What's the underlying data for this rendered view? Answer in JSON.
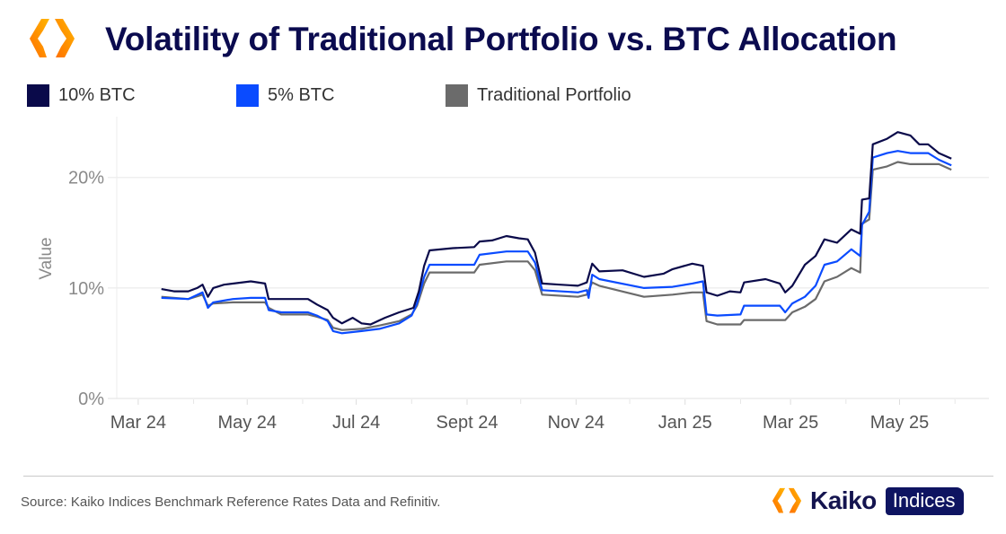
{
  "header": {
    "title": "Volatility of Traditional Portfolio vs. BTC Allocation",
    "logo_icon": "kaiko-hexagon-logo-icon"
  },
  "colors": {
    "title": "#0b0b4f",
    "logo_orange_dark": "#ff7a00",
    "logo_orange_light": "#ffb400",
    "badge_bg": "#0e1461"
  },
  "footer": {
    "source": "Source: Kaiko Indices Benchmark Reference Rates Data and Refinitiv.",
    "brand_name": "Kaiko",
    "brand_badge": "Indices"
  },
  "chart_data": {
    "type": "line",
    "title": "Volatility of Traditional Portfolio vs. BTC Allocation",
    "xlabel": "",
    "ylabel": "Value",
    "ylim": [
      0,
      25.5
    ],
    "xlim": [
      "2024-02-18",
      "2025-06-20"
    ],
    "grid": true,
    "legend_position": "top-left",
    "y_ticks": [
      {
        "value": 0,
        "label": "0%"
      },
      {
        "value": 10,
        "label": "10%"
      },
      {
        "value": 20,
        "label": "20%"
      }
    ],
    "x_ticks": [
      {
        "date": "2024-03-01",
        "label": "Mar 24"
      },
      {
        "date": "2024-05-01",
        "label": "May 24"
      },
      {
        "date": "2024-07-01",
        "label": "Jul 24"
      },
      {
        "date": "2024-09-01",
        "label": "Sept 24"
      },
      {
        "date": "2024-11-01",
        "label": "Nov 24"
      },
      {
        "date": "2025-01-01",
        "label": "Jan 25"
      },
      {
        "date": "2025-03-01",
        "label": "Mar 25"
      },
      {
        "date": "2025-05-01",
        "label": "May 25"
      }
    ],
    "x_minor_ticks": [
      "2024-02-01",
      "2024-04-01",
      "2024-06-01",
      "2024-08-01",
      "2024-10-01",
      "2024-12-01",
      "2025-02-01",
      "2025-04-01",
      "2025-06-01"
    ],
    "series": [
      {
        "name": "10% BTC",
        "color": "#0a0a4a",
        "points": [
          [
            "2024-03-14",
            9.9
          ],
          [
            "2024-03-21",
            9.7
          ],
          [
            "2024-03-29",
            9.7
          ],
          [
            "2024-04-03",
            10.0
          ],
          [
            "2024-04-06",
            10.3
          ],
          [
            "2024-04-09",
            9.2
          ],
          [
            "2024-04-12",
            10.0
          ],
          [
            "2024-04-18",
            10.3
          ],
          [
            "2024-05-03",
            10.6
          ],
          [
            "2024-05-11",
            10.4
          ],
          [
            "2024-05-13",
            9.0
          ],
          [
            "2024-05-20",
            9.0
          ],
          [
            "2024-06-04",
            9.0
          ],
          [
            "2024-06-09",
            8.5
          ],
          [
            "2024-06-15",
            8.0
          ],
          [
            "2024-06-18",
            7.3
          ],
          [
            "2024-06-23",
            6.8
          ],
          [
            "2024-06-29",
            7.3
          ],
          [
            "2024-07-04",
            6.8
          ],
          [
            "2024-07-09",
            6.7
          ],
          [
            "2024-07-17",
            7.3
          ],
          [
            "2024-07-25",
            7.8
          ],
          [
            "2024-08-02",
            8.2
          ],
          [
            "2024-08-05",
            9.7
          ],
          [
            "2024-08-08",
            12.0
          ],
          [
            "2024-08-11",
            13.4
          ],
          [
            "2024-08-24",
            13.6
          ],
          [
            "2024-09-05",
            13.7
          ],
          [
            "2024-09-08",
            14.2
          ],
          [
            "2024-09-15",
            14.3
          ],
          [
            "2024-09-23",
            14.7
          ],
          [
            "2024-09-30",
            14.5
          ],
          [
            "2024-10-05",
            14.4
          ],
          [
            "2024-10-09",
            13.2
          ],
          [
            "2024-10-13",
            10.4
          ],
          [
            "2024-10-23",
            10.3
          ],
          [
            "2024-11-02",
            10.2
          ],
          [
            "2024-11-07",
            10.5
          ],
          [
            "2024-11-10",
            12.2
          ],
          [
            "2024-11-14",
            11.5
          ],
          [
            "2024-11-27",
            11.6
          ],
          [
            "2024-12-09",
            11.0
          ],
          [
            "2024-12-20",
            11.3
          ],
          [
            "2024-12-25",
            11.7
          ],
          [
            "2025-01-05",
            12.2
          ],
          [
            "2025-01-11",
            12.0
          ],
          [
            "2025-01-13",
            9.6
          ],
          [
            "2025-01-19",
            9.3
          ],
          [
            "2025-01-26",
            9.7
          ],
          [
            "2025-02-01",
            9.6
          ],
          [
            "2025-02-03",
            10.5
          ],
          [
            "2025-02-15",
            10.8
          ],
          [
            "2025-02-23",
            10.4
          ],
          [
            "2025-02-26",
            9.6
          ],
          [
            "2025-03-02",
            10.2
          ],
          [
            "2025-03-09",
            12.1
          ],
          [
            "2025-03-15",
            12.9
          ],
          [
            "2025-03-20",
            14.4
          ],
          [
            "2025-03-27",
            14.1
          ],
          [
            "2025-04-04",
            15.3
          ],
          [
            "2025-04-09",
            14.9
          ],
          [
            "2025-04-10",
            18.0
          ],
          [
            "2025-04-14",
            18.1
          ],
          [
            "2025-04-16",
            23.0
          ],
          [
            "2025-04-24",
            23.5
          ],
          [
            "2025-04-30",
            24.1
          ],
          [
            "2025-05-07",
            23.8
          ],
          [
            "2025-05-12",
            23.0
          ],
          [
            "2025-05-17",
            23.0
          ],
          [
            "2025-05-23",
            22.2
          ],
          [
            "2025-05-30",
            21.7
          ]
        ]
      },
      {
        "name": "5% BTC",
        "color": "#0a4bff",
        "points": [
          [
            "2024-03-14",
            9.1
          ],
          [
            "2024-03-29",
            9.0
          ],
          [
            "2024-04-06",
            9.6
          ],
          [
            "2024-04-09",
            8.2
          ],
          [
            "2024-04-12",
            8.7
          ],
          [
            "2024-04-23",
            9.0
          ],
          [
            "2024-05-03",
            9.1
          ],
          [
            "2024-05-11",
            9.1
          ],
          [
            "2024-05-13",
            8.0
          ],
          [
            "2024-05-20",
            7.8
          ],
          [
            "2024-06-04",
            7.8
          ],
          [
            "2024-06-09",
            7.5
          ],
          [
            "2024-06-15",
            7.0
          ],
          [
            "2024-06-18",
            6.1
          ],
          [
            "2024-06-23",
            5.9
          ],
          [
            "2024-07-04",
            6.1
          ],
          [
            "2024-07-14",
            6.3
          ],
          [
            "2024-07-25",
            6.8
          ],
          [
            "2024-08-01",
            7.5
          ],
          [
            "2024-08-04",
            8.6
          ],
          [
            "2024-08-08",
            11.0
          ],
          [
            "2024-08-11",
            12.1
          ],
          [
            "2024-09-05",
            12.1
          ],
          [
            "2024-09-08",
            13.0
          ],
          [
            "2024-09-23",
            13.3
          ],
          [
            "2024-10-05",
            13.3
          ],
          [
            "2024-10-09",
            12.3
          ],
          [
            "2024-10-13",
            9.8
          ],
          [
            "2024-11-02",
            9.6
          ],
          [
            "2024-11-07",
            9.8
          ],
          [
            "2024-11-08",
            9.1
          ],
          [
            "2024-11-10",
            11.2
          ],
          [
            "2024-11-14",
            10.8
          ],
          [
            "2024-12-09",
            10.0
          ],
          [
            "2024-12-25",
            10.1
          ],
          [
            "2025-01-05",
            10.4
          ],
          [
            "2025-01-11",
            10.6
          ],
          [
            "2025-01-13",
            7.6
          ],
          [
            "2025-01-19",
            7.5
          ],
          [
            "2025-02-01",
            7.6
          ],
          [
            "2025-02-03",
            8.4
          ],
          [
            "2025-02-23",
            8.4
          ],
          [
            "2025-02-26",
            7.8
          ],
          [
            "2025-03-02",
            8.6
          ],
          [
            "2025-03-09",
            9.2
          ],
          [
            "2025-03-15",
            10.2
          ],
          [
            "2025-03-20",
            12.1
          ],
          [
            "2025-03-27",
            12.4
          ],
          [
            "2025-04-04",
            13.5
          ],
          [
            "2025-04-09",
            12.9
          ],
          [
            "2025-04-10",
            15.7
          ],
          [
            "2025-04-14",
            16.9
          ],
          [
            "2025-04-16",
            21.8
          ],
          [
            "2025-04-24",
            22.2
          ],
          [
            "2025-04-30",
            22.4
          ],
          [
            "2025-05-07",
            22.2
          ],
          [
            "2025-05-17",
            22.2
          ],
          [
            "2025-05-23",
            21.6
          ],
          [
            "2025-05-30",
            21.1
          ]
        ]
      },
      {
        "name": "Traditional Portfolio",
        "color": "#6b6b6b",
        "points": [
          [
            "2024-03-14",
            9.2
          ],
          [
            "2024-03-29",
            9.0
          ],
          [
            "2024-04-06",
            9.4
          ],
          [
            "2024-04-09",
            8.4
          ],
          [
            "2024-04-12",
            8.6
          ],
          [
            "2024-04-23",
            8.7
          ],
          [
            "2024-05-11",
            8.7
          ],
          [
            "2024-05-13",
            8.2
          ],
          [
            "2024-05-20",
            7.6
          ],
          [
            "2024-06-04",
            7.6
          ],
          [
            "2024-06-09",
            7.4
          ],
          [
            "2024-06-15",
            7.1
          ],
          [
            "2024-06-18",
            6.4
          ],
          [
            "2024-06-23",
            6.2
          ],
          [
            "2024-07-04",
            6.3
          ],
          [
            "2024-07-14",
            6.6
          ],
          [
            "2024-07-25",
            7.0
          ],
          [
            "2024-08-01",
            7.6
          ],
          [
            "2024-08-04",
            8.4
          ],
          [
            "2024-08-08",
            10.4
          ],
          [
            "2024-08-11",
            11.4
          ],
          [
            "2024-09-05",
            11.4
          ],
          [
            "2024-09-08",
            12.1
          ],
          [
            "2024-09-23",
            12.4
          ],
          [
            "2024-10-05",
            12.4
          ],
          [
            "2024-10-09",
            11.6
          ],
          [
            "2024-10-13",
            9.4
          ],
          [
            "2024-11-02",
            9.2
          ],
          [
            "2024-11-07",
            9.4
          ],
          [
            "2024-11-10",
            10.5
          ],
          [
            "2024-11-14",
            10.2
          ],
          [
            "2024-12-09",
            9.2
          ],
          [
            "2024-12-25",
            9.4
          ],
          [
            "2025-01-05",
            9.6
          ],
          [
            "2025-01-11",
            9.6
          ],
          [
            "2025-01-13",
            7.0
          ],
          [
            "2025-01-19",
            6.7
          ],
          [
            "2025-02-01",
            6.7
          ],
          [
            "2025-02-03",
            7.1
          ],
          [
            "2025-02-26",
            7.1
          ],
          [
            "2025-03-02",
            7.8
          ],
          [
            "2025-03-09",
            8.3
          ],
          [
            "2025-03-15",
            9.0
          ],
          [
            "2025-03-20",
            10.6
          ],
          [
            "2025-03-27",
            11.0
          ],
          [
            "2025-04-04",
            11.8
          ],
          [
            "2025-04-09",
            11.4
          ],
          [
            "2025-04-10",
            15.8
          ],
          [
            "2025-04-14",
            16.2
          ],
          [
            "2025-04-16",
            20.7
          ],
          [
            "2025-04-24",
            21.0
          ],
          [
            "2025-04-30",
            21.4
          ],
          [
            "2025-05-07",
            21.2
          ],
          [
            "2025-05-23",
            21.2
          ],
          [
            "2025-05-30",
            20.7
          ]
        ]
      }
    ]
  }
}
